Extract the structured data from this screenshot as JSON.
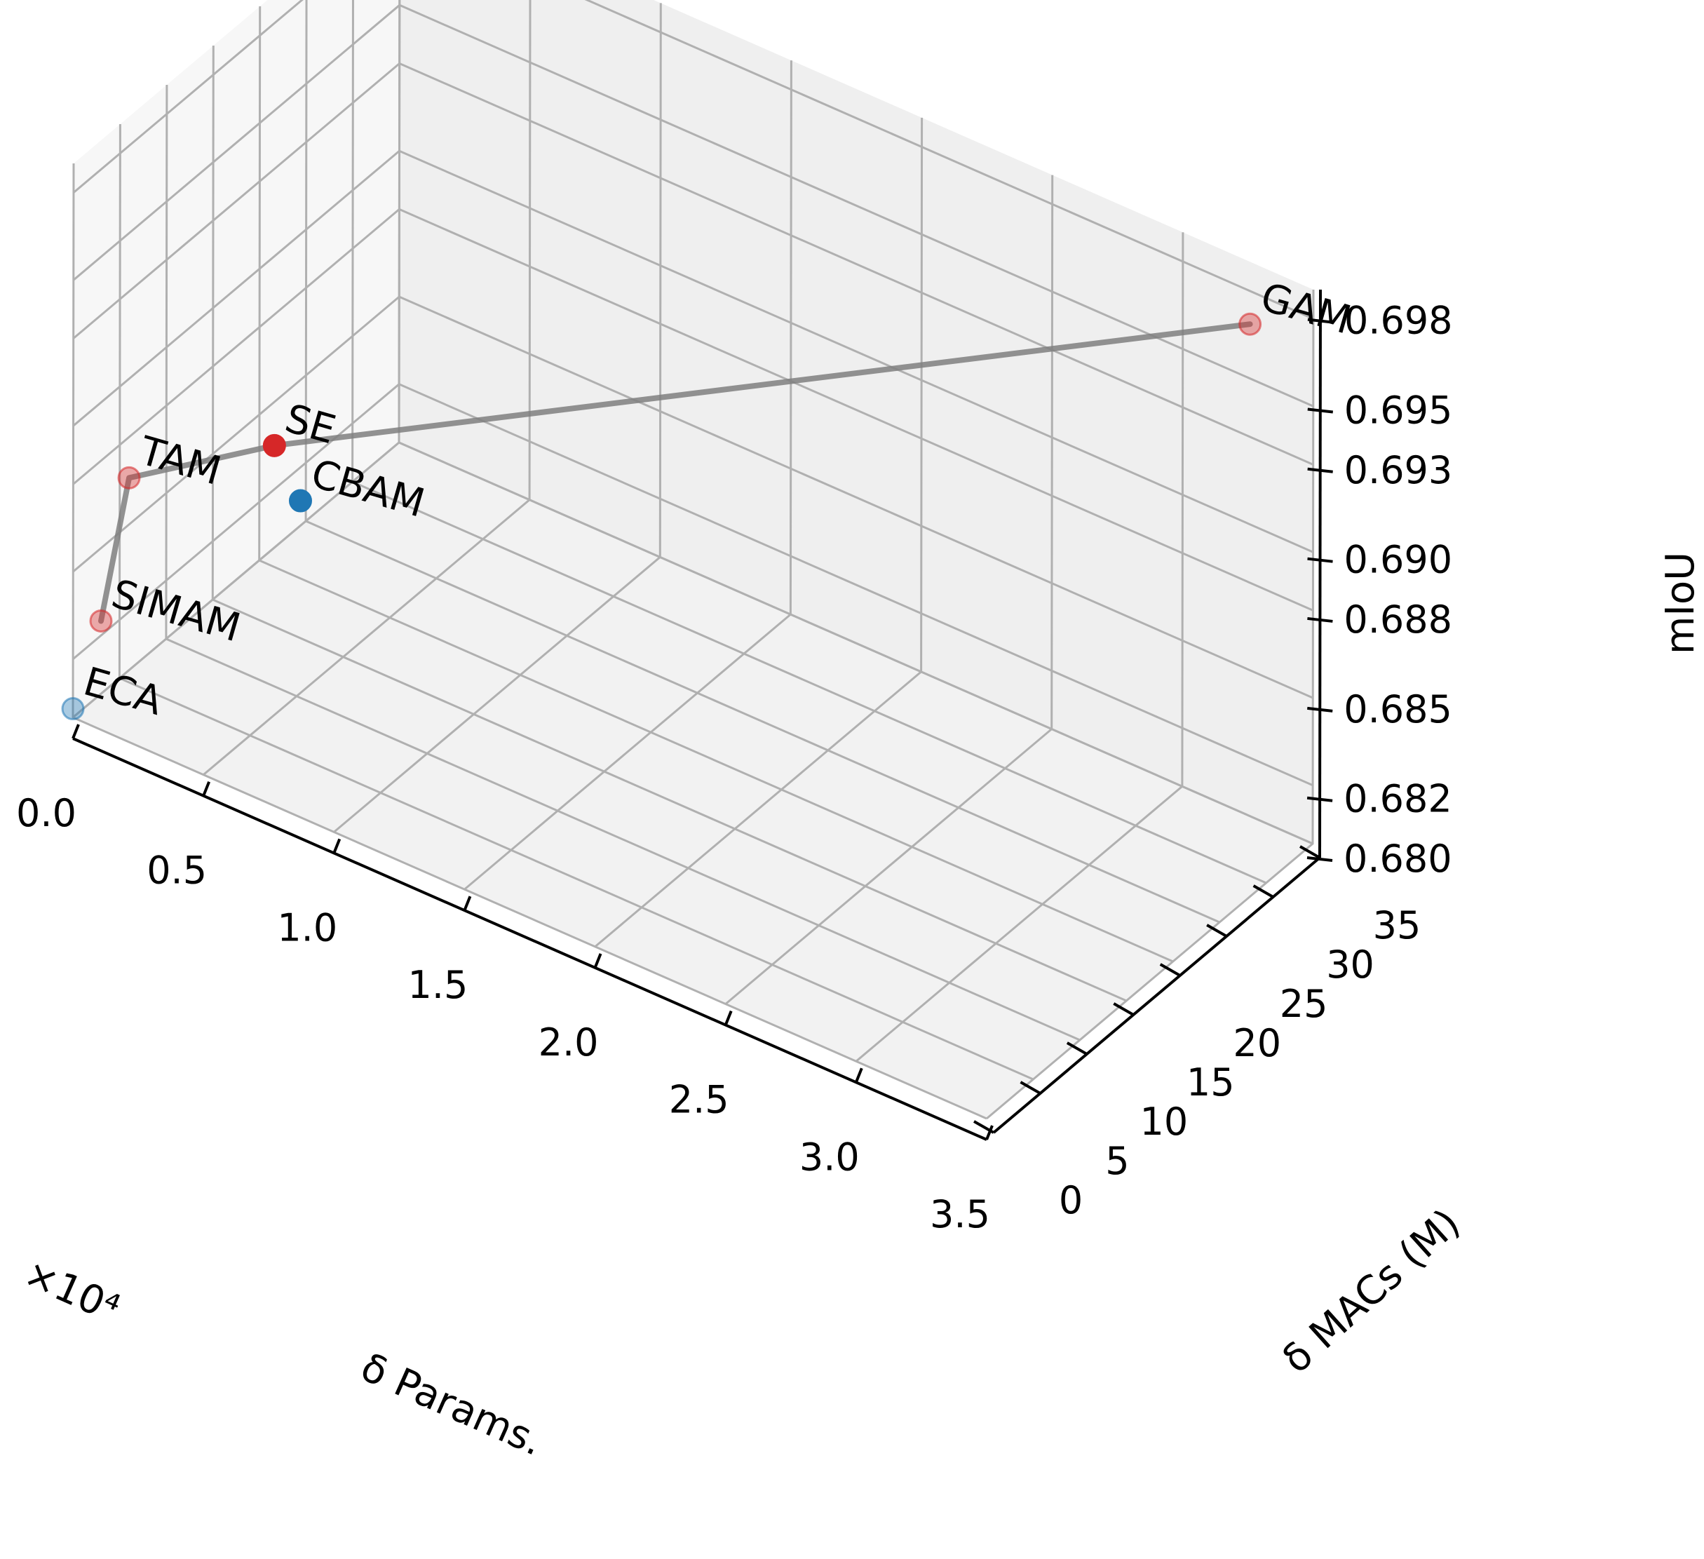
{
  "chart_data": {
    "type": "scatter3d",
    "xlabel": "δ Params.",
    "x_multiplier": "×10⁴",
    "ylabel": "δ MACs (M)",
    "zlabel": "mIoU",
    "xlim": [
      0.0,
      3.5
    ],
    "ylim": [
      0,
      35
    ],
    "zlim": [
      0.68,
      0.699
    ],
    "x_ticks": [
      "0.0",
      "0.5",
      "1.0",
      "1.5",
      "2.0",
      "2.5",
      "3.0",
      "3.5"
    ],
    "y_ticks": [
      "0",
      "5",
      "10",
      "15",
      "20",
      "25",
      "30",
      "35"
    ],
    "z_ticks": [
      "0.680",
      "0.682",
      "0.685",
      "0.688",
      "0.690",
      "0.693",
      "0.695",
      "0.698"
    ],
    "grid": true,
    "points": [
      {
        "label": "ECA",
        "x": 0.0,
        "y": 0,
        "z": 0.6803,
        "color": "#1f77b4"
      },
      {
        "label": "SIMAM",
        "x": 0.0,
        "y": 3,
        "z": 0.6825,
        "color": "#d62728"
      },
      {
        "label": "TAM",
        "x": 0.0,
        "y": 6,
        "z": 0.6866,
        "color": "#d62728"
      },
      {
        "label": "SE",
        "x": 0.2,
        "y": 16,
        "z": 0.6858,
        "color": "#d62728"
      },
      {
        "label": "CBAM",
        "x": 0.3,
        "y": 16,
        "z": 0.6843,
        "color": "#1f77b4"
      },
      {
        "label": "GAM",
        "x": 3.4,
        "y": 31,
        "z": 0.6985,
        "color": "#d62728"
      }
    ],
    "front_line_order": [
      "SIMAM",
      "TAM",
      "SE",
      "GAM"
    ]
  }
}
